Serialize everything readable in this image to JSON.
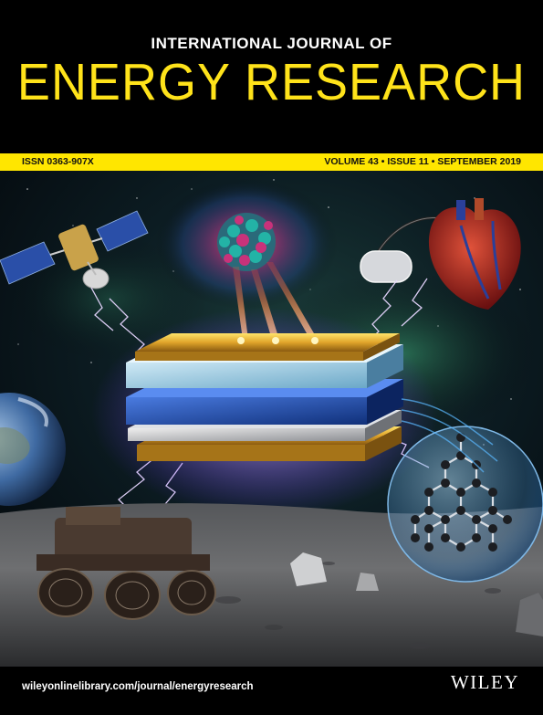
{
  "journal": {
    "title_line1": "INTERNATIONAL JOURNAL OF",
    "title_line2": "ENERGY RESEARCH"
  },
  "issue_bar": {
    "issn": "ISSN 0363-907X",
    "volume_issue_date": "VOLUME 43 • ISSUE 11 • SEPTEMBER 2019"
  },
  "footer": {
    "url": "wileyonlinelibrary.com/journal/energyresearch",
    "publisher": "WILEY"
  },
  "colors": {
    "title_yellow": "#ffe31a",
    "bar_yellow": "#ffe600",
    "background": "#000000"
  },
  "illustration": {
    "icons": [
      "satellite-icon",
      "atom-cluster-icon",
      "pacemaker-icon",
      "heart-icon",
      "earth-icon",
      "battery-stack-icon",
      "lunar-rover-icon",
      "diamond-lattice-icon",
      "rock-icon"
    ]
  }
}
